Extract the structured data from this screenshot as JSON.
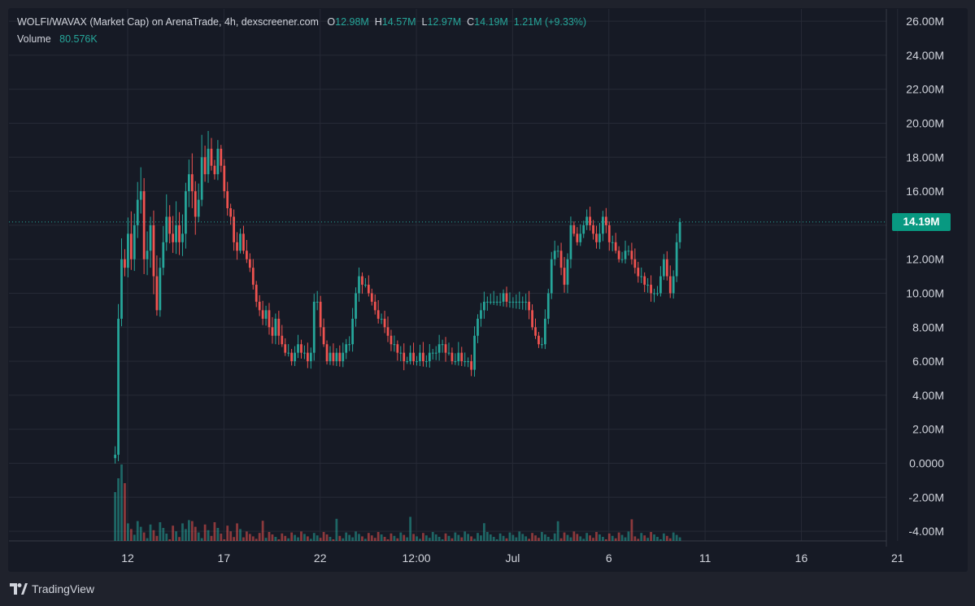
{
  "header": {
    "symbol_title": "WOLFI/WAVAX (Market Cap) on ArenaTrade, 4h, dexscreener.com",
    "open_label": "O",
    "open_value": "12.98M",
    "high_label": "H",
    "high_value": "14.57M",
    "low_label": "L",
    "low_value": "12.97M",
    "close_label": "C",
    "close_value": "14.19M",
    "change_value": "1.21M (+9.33%)",
    "volume_label": "Volume",
    "volume_value": "80.576K"
  },
  "price_badge": "14.19M",
  "footer": {
    "brand": "TradingView",
    "logo_icon": "tradingview-logo-icon"
  },
  "colors": {
    "up": "#26a69a",
    "down": "#ef5350",
    "background": "#161a25",
    "grid": "#262a36",
    "text": "#d1d4dc",
    "badge": "#089981"
  },
  "chart_data": {
    "type": "candlestick",
    "title": "WOLFI/WAVAX (Market Cap) on ArenaTrade, 4h, dexscreener.com",
    "ylim": [
      -4.4,
      26.5
    ],
    "y_ticks": [
      "26.00M",
      "24.00M",
      "22.00M",
      "20.00M",
      "18.00M",
      "16.00M",
      "14.00M",
      "12.00M",
      "10.00M",
      "8.00M",
      "6.00M",
      "4.00M",
      "2.00M",
      "0.0000",
      "-2.00M",
      "-4.00M"
    ],
    "y_tick_values": [
      26,
      24,
      22,
      20,
      18,
      16,
      14,
      12,
      10,
      8,
      6,
      4,
      2,
      0,
      -2,
      -4
    ],
    "x_ticks": [
      "12",
      "17",
      "22",
      "12:00",
      "Jul",
      "6",
      "11",
      "16",
      "21"
    ],
    "x_tick_days": [
      12,
      17,
      22,
      27,
      32,
      37,
      42,
      47,
      52
    ],
    "x_range_days": [
      6.25,
      55.8
    ],
    "last_price": 14.19,
    "close_series_start_day": 11.35,
    "candle_step_days": 0.1667,
    "closes": [
      0.5,
      8.5,
      12,
      11.5,
      13.5,
      12,
      14,
      15.5,
      16,
      12,
      12.5,
      14,
      11,
      9,
      11.5,
      13,
      14.5,
      13.5,
      13,
      14,
      13,
      13.5,
      16,
      17,
      16,
      14.5,
      15.5,
      18,
      17,
      18.5,
      17.5,
      17,
      18.5,
      17.5,
      16,
      15,
      14.5,
      13,
      12.5,
      13.5,
      12.5,
      12,
      11.5,
      10.5,
      9.5,
      9,
      8.5,
      9,
      8,
      7.5,
      8.5,
      7.5,
      7,
      6.5,
      6.5,
      6,
      6.5,
      7,
      6.5,
      6.5,
      6,
      6.5,
      9.5,
      9.5,
      8,
      7,
      6,
      6.5,
      6,
      6.5,
      6,
      6.5,
      7,
      7,
      8.5,
      10,
      11,
      10.5,
      10.5,
      10,
      9.5,
      9,
      8.5,
      8.5,
      8,
      7.5,
      7,
      7,
      6.5,
      6.5,
      6,
      6,
      6.5,
      6,
      6,
      6.5,
      6,
      6,
      6.5,
      6.5,
      6.5,
      7,
      7,
      6.5,
      6.5,
      6,
      6,
      6.5,
      6,
      6,
      6,
      5.5,
      7.5,
      8.5,
      9,
      9.5,
      9.5,
      9.5,
      9.5,
      9.5,
      9.5,
      10,
      9.5,
      9.5,
      9.5,
      9.5,
      9.5,
      9.5,
      9.5,
      9,
      8,
      7.5,
      7,
      7,
      8.5,
      10,
      12,
      12.5,
      12.5,
      11.5,
      10.5,
      12,
      14,
      13.5,
      13,
      13.5,
      14,
      14.5,
      14,
      13.5,
      13,
      13.5,
      14.5,
      14,
      13,
      13,
      12.5,
      12,
      12,
      12.5,
      12.5,
      12,
      11.5,
      11,
      11,
      10.5,
      10.5,
      10,
      10,
      10,
      11,
      12,
      11,
      10,
      11,
      13,
      14.19
    ],
    "volume_label": "Volume",
    "volume_last": "80.576K"
  }
}
